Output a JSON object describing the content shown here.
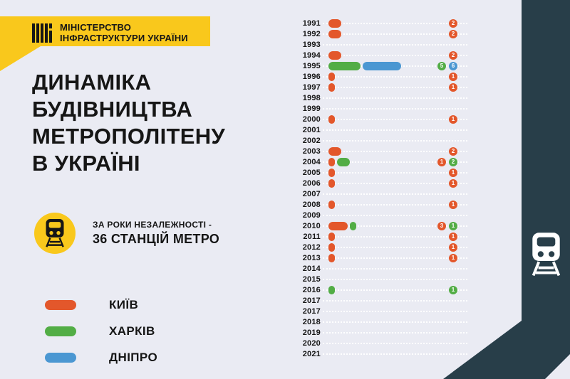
{
  "colors": {
    "background": "#EAEBF3",
    "accent_yellow": "#F9C81C",
    "dark_panel": "#283E49",
    "text": "#161616",
    "kyiv": "#E3572B",
    "kharkiv": "#52AD45",
    "dnipro": "#4B97D2",
    "badge_text": "#FFFFFF",
    "leader_dots": "#FFFFFF"
  },
  "header": {
    "lines": [
      "МІНІСТЕРСТВО",
      "ІНФРАСТРУКТУРИ УКРАЇНИ"
    ]
  },
  "title": {
    "lines": [
      "ДИНАМІКА",
      "БУДІВНИЦТВА",
      "МЕТРОПОЛІТЕНУ",
      "В УКРАЇНІ"
    ]
  },
  "stat": {
    "line1": "ЗА РОКИ НЕЗАЛЕЖНОСТІ -",
    "line2": "36 СТАНЦІЙ МЕТРО"
  },
  "legend": {
    "position": "bottom-left",
    "items": [
      {
        "label": "КИЇВ",
        "city": "kyiv"
      },
      {
        "label": "ХАРКІВ",
        "city": "kharkiv"
      },
      {
        "label": "ДНІПРО",
        "city": "dnipro"
      }
    ]
  },
  "chart_data": {
    "type": "bar",
    "orientation": "horizontal",
    "title": "ДИНАМІКА БУДІВНИЦТВА МЕТРОПОЛІТЕНУ В УКРАЇНІ",
    "unit": "metro stations opened per year",
    "grid": "dotted row leaders",
    "value_labels": "colored circular badges, right-aligned",
    "series_colors": {
      "kyiv": "#E3572B",
      "kharkiv": "#52AD45",
      "dnipro": "#4B97D2"
    },
    "rows": [
      {
        "year": "1991",
        "segments": [
          {
            "city": "kyiv",
            "count": 2
          }
        ]
      },
      {
        "year": "1992",
        "segments": [
          {
            "city": "kyiv",
            "count": 2
          }
        ]
      },
      {
        "year": "1993",
        "segments": []
      },
      {
        "year": "1994",
        "segments": [
          {
            "city": "kyiv",
            "count": 2
          }
        ]
      },
      {
        "year": "1995",
        "segments": [
          {
            "city": "kharkiv",
            "count": 5
          },
          {
            "city": "dnipro",
            "count": 6
          }
        ]
      },
      {
        "year": "1996",
        "segments": [
          {
            "city": "kyiv",
            "count": 1
          }
        ]
      },
      {
        "year": "1997",
        "segments": [
          {
            "city": "kyiv",
            "count": 1
          }
        ]
      },
      {
        "year": "1998",
        "segments": []
      },
      {
        "year": "1999",
        "segments": []
      },
      {
        "year": "2000",
        "segments": [
          {
            "city": "kyiv",
            "count": 1
          }
        ]
      },
      {
        "year": "2001",
        "segments": []
      },
      {
        "year": "2002",
        "segments": []
      },
      {
        "year": "2003",
        "segments": [
          {
            "city": "kyiv",
            "count": 2
          }
        ]
      },
      {
        "year": "2004",
        "segments": [
          {
            "city": "kyiv",
            "count": 1
          },
          {
            "city": "kharkiv",
            "count": 2
          }
        ]
      },
      {
        "year": "2005",
        "segments": [
          {
            "city": "kyiv",
            "count": 1
          }
        ]
      },
      {
        "year": "2006",
        "segments": [
          {
            "city": "kyiv",
            "count": 1
          }
        ]
      },
      {
        "year": "2007",
        "segments": []
      },
      {
        "year": "2008",
        "segments": [
          {
            "city": "kyiv",
            "count": 1
          }
        ]
      },
      {
        "year": "2009",
        "segments": []
      },
      {
        "year": "2010",
        "segments": [
          {
            "city": "kyiv",
            "count": 3
          },
          {
            "city": "kharkiv",
            "count": 1
          }
        ]
      },
      {
        "year": "2011",
        "segments": [
          {
            "city": "kyiv",
            "count": 1
          }
        ]
      },
      {
        "year": "2012",
        "segments": [
          {
            "city": "kyiv",
            "count": 1
          }
        ]
      },
      {
        "year": "2013",
        "segments": [
          {
            "city": "kyiv",
            "count": 1
          }
        ]
      },
      {
        "year": "2014",
        "segments": []
      },
      {
        "year": "2015",
        "segments": []
      },
      {
        "year": "2016",
        "segments": [
          {
            "city": "kharkiv",
            "count": 1
          }
        ]
      },
      {
        "year": "2017",
        "segments": []
      },
      {
        "year": "2017",
        "segments": []
      },
      {
        "year": "2018",
        "segments": []
      },
      {
        "year": "2019",
        "segments": []
      },
      {
        "year": "2020",
        "segments": []
      },
      {
        "year": "2021",
        "segments": []
      }
    ]
  }
}
